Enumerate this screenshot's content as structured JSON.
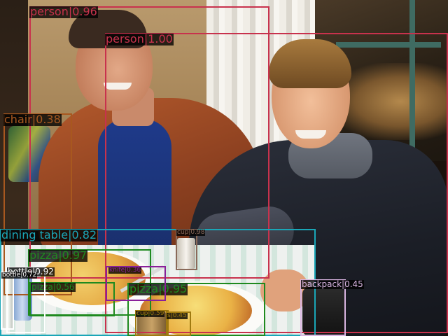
{
  "detections": [
    {
      "id": "person-1",
      "label": "person|0.96",
      "color": "#c8324d"
    },
    {
      "id": "person-2",
      "label": "person|1.00",
      "color": "#c8324d"
    },
    {
      "id": "chair",
      "label": "chair|0.38",
      "color": "#a8581f"
    },
    {
      "id": "dining-table",
      "label": "dining table|0.82",
      "color": "#1aa6b7"
    },
    {
      "id": "pizza-1",
      "label": "pizza|0.97",
      "color": "#1f8a1f"
    },
    {
      "id": "pizza-2",
      "label": "pizza|0.56",
      "color": "#1f8a1f"
    },
    {
      "id": "pizza-3",
      "label": "pizza|0.95",
      "color": "#1f8a1f"
    },
    {
      "id": "cup-1",
      "label": "cup|0.98",
      "color": "#8a6a5a"
    },
    {
      "id": "cup-2",
      "label": "cup|0.59",
      "color": "#a07a10"
    },
    {
      "id": "bottle-1",
      "label": "bottle|0.92",
      "color": "#ffffff"
    },
    {
      "id": "bottle-2",
      "label": "bottle|0.72",
      "color": "#ffffff"
    },
    {
      "id": "knife",
      "label": "knife|0.36",
      "color": "#8a1f9a"
    },
    {
      "id": "s",
      "label": "s|0.45",
      "color": "#a07a10"
    },
    {
      "id": "backpack",
      "label": "backpack|0.45",
      "color": "#d8b4e0"
    }
  ]
}
